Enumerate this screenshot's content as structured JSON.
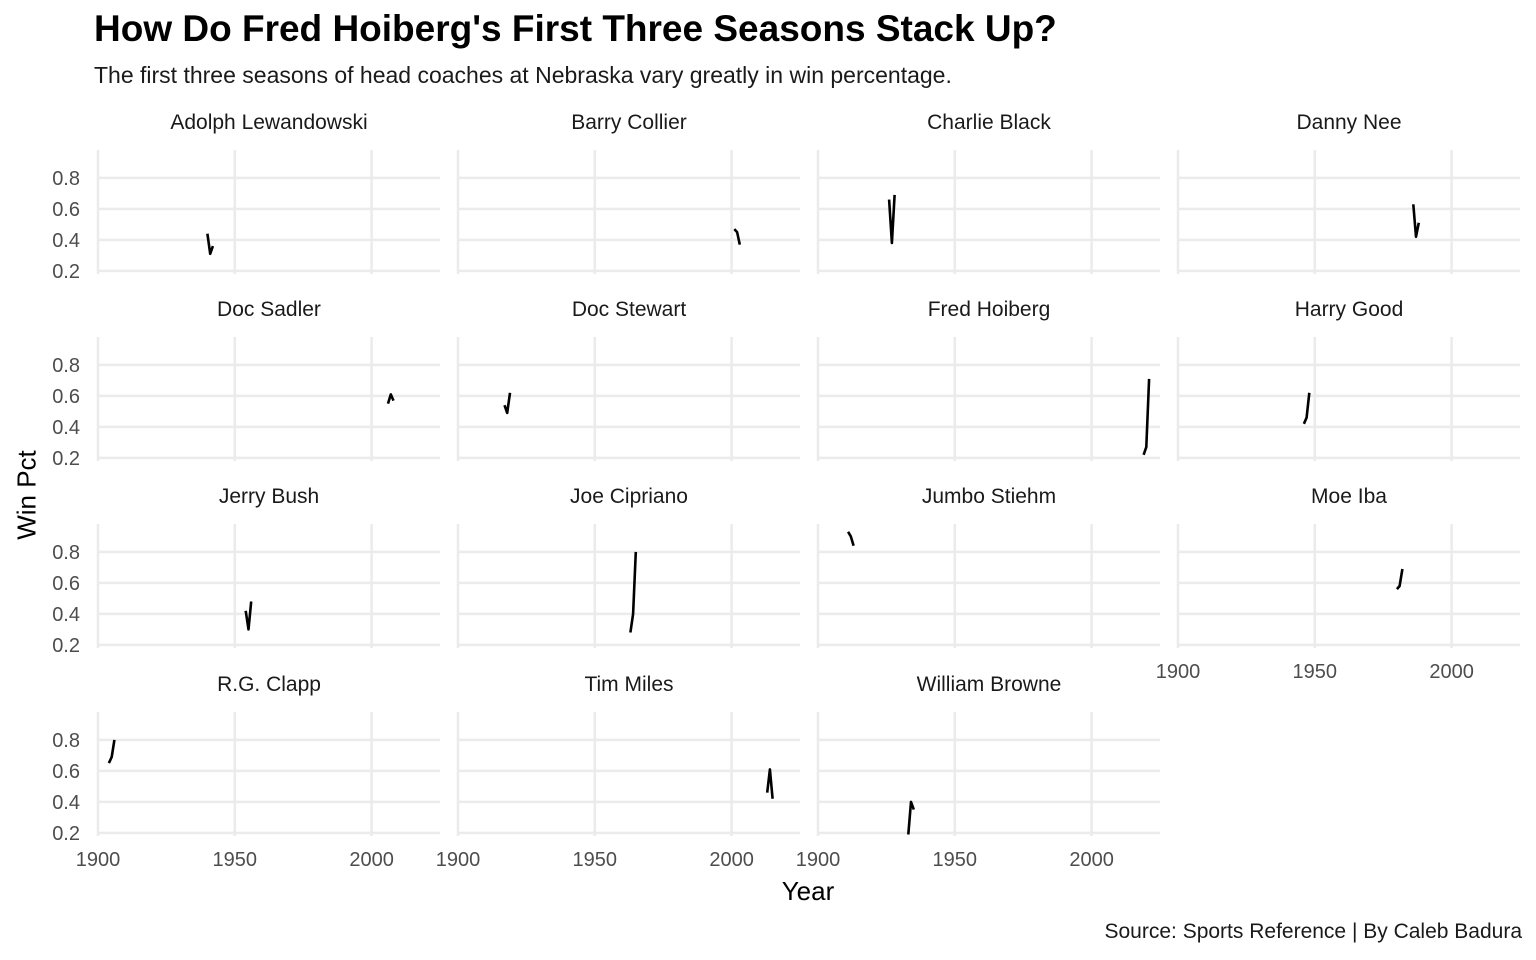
{
  "title": "How Do Fred Hoiberg's First Three Seasons Stack Up?",
  "subtitle": "The first three seasons of head coaches at Nebraska vary greatly in win percentage.",
  "caption": "Source: Sports Reference | By Caleb Badura",
  "chart_data": {
    "type": "line",
    "facet": "small-multiples",
    "xlabel": "Year",
    "ylabel": "Win Pct",
    "xlim": [
      1900,
      2025
    ],
    "ylim": [
      0.18,
      0.98
    ],
    "x_ticks": [
      1900,
      1950,
      2000
    ],
    "y_ticks": [
      0.2,
      0.4,
      0.6,
      0.8
    ],
    "grid": true,
    "series": [
      {
        "name": "Adolph Lewandowski",
        "x": [
          1940,
          1941,
          1942
        ],
        "y": [
          0.44,
          0.31,
          0.36
        ]
      },
      {
        "name": "Barry Collier",
        "x": [
          2001,
          2002,
          2003
        ],
        "y": [
          0.47,
          0.45,
          0.37
        ]
      },
      {
        "name": "Charlie Black",
        "x": [
          1926,
          1927,
          1928
        ],
        "y": [
          0.66,
          0.38,
          0.69
        ]
      },
      {
        "name": "Danny Nee",
        "x": [
          1986,
          1987,
          1988
        ],
        "y": [
          0.63,
          0.42,
          0.51
        ]
      },
      {
        "name": "Doc Sadler",
        "x": [
          2006,
          2007,
          2008
        ],
        "y": [
          0.55,
          0.61,
          0.57
        ]
      },
      {
        "name": "Doc Stewart",
        "x": [
          1917,
          1918,
          1919
        ],
        "y": [
          0.54,
          0.49,
          0.62
        ]
      },
      {
        "name": "Fred Hoiberg",
        "x": [
          2019,
          2020,
          2021
        ],
        "y": [
          0.22,
          0.27,
          0.71
        ]
      },
      {
        "name": "Harry Good",
        "x": [
          1946,
          1947,
          1948
        ],
        "y": [
          0.42,
          0.46,
          0.62
        ]
      },
      {
        "name": "Jerry Bush",
        "x": [
          1954,
          1955,
          1956
        ],
        "y": [
          0.42,
          0.3,
          0.48
        ]
      },
      {
        "name": "Joe Cipriano",
        "x": [
          1963,
          1964,
          1965
        ],
        "y": [
          0.28,
          0.4,
          0.8
        ]
      },
      {
        "name": "Jumbo Stiehm",
        "x": [
          1911,
          1912,
          1913
        ],
        "y": [
          0.93,
          0.9,
          0.84
        ]
      },
      {
        "name": "Moe Iba",
        "x": [
          1980,
          1981,
          1982
        ],
        "y": [
          0.56,
          0.58,
          0.69
        ]
      },
      {
        "name": "R.G. Clapp",
        "x": [
          1904,
          1905,
          1906
        ],
        "y": [
          0.65,
          0.69,
          0.8
        ]
      },
      {
        "name": "Tim Miles",
        "x": [
          2013,
          2014,
          2015
        ],
        "y": [
          0.46,
          0.61,
          0.42
        ]
      },
      {
        "name": "William Browne",
        "x": [
          1933,
          1934,
          1935
        ],
        "y": [
          0.19,
          0.4,
          0.35
        ]
      }
    ]
  }
}
